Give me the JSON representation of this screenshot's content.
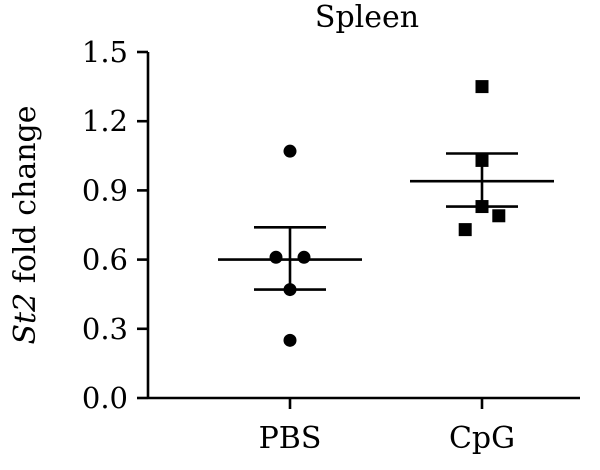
{
  "chart_data": {
    "type": "scatter",
    "title": "Spleen",
    "ylabel_italic": "St2",
    "ylabel_rest": " fold change",
    "ylim": [
      0,
      1.5
    ],
    "yticks": [
      "0.0",
      "0.3",
      "0.6",
      "0.9",
      "1.2",
      "1.5"
    ],
    "ytick_values": [
      0,
      0.3,
      0.6,
      0.9,
      1.2,
      1.5
    ],
    "categories": [
      "PBS",
      "CpG"
    ],
    "series": [
      {
        "category": "PBS",
        "marker": "circle",
        "values": [
          1.07,
          0.61,
          0.61,
          0.47,
          0.25
        ],
        "jitter": [
          0,
          -0.5,
          0.5,
          0,
          0
        ],
        "mean": 0.6,
        "sem_upper": 0.74,
        "sem_lower": 0.47
      },
      {
        "category": "CpG",
        "marker": "square",
        "values": [
          1.35,
          1.03,
          0.83,
          0.79,
          0.73
        ],
        "jitter": [
          0,
          0,
          0,
          0.6,
          -0.6
        ],
        "mean": 0.94,
        "sem_upper": 1.06,
        "sem_lower": 0.83
      }
    ],
    "grid": false,
    "legend": "none"
  }
}
